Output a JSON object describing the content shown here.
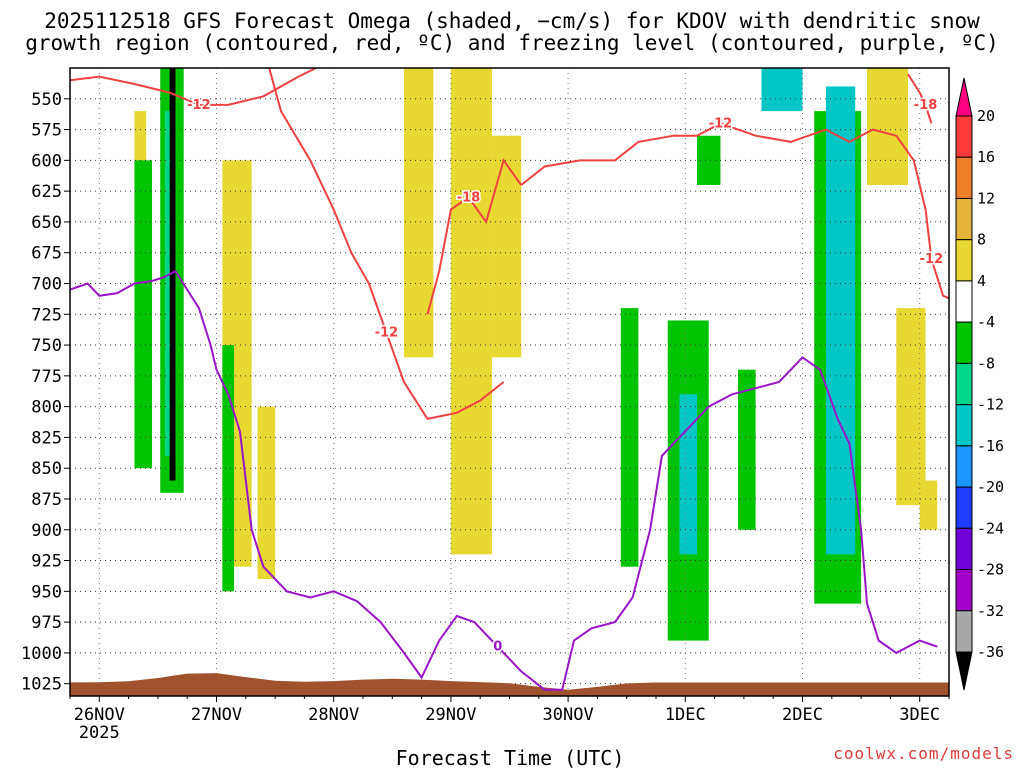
{
  "title_line1": "2025112518 GFS Forecast Omega (shaded, −cm/s) for KDOV with dendritic snow",
  "title_line2": "growth region (contoured, red, ºC) and freezing level (contoured, purple, ºC)",
  "credit": "coolwx.com/models",
  "chart_data": {
    "type": "heatmap",
    "title": "2025112518 GFS Forecast Omega (shaded, −cm/s) for KDOV with dendritic snow growth region (contoured, red, ºC) and freezing level (contoured, purple, ºC)",
    "xlabel": "Forecast Time (UTC)",
    "ylabel": "",
    "year_label": "2025",
    "x_days": [
      26,
      27,
      28,
      29,
      30,
      31,
      32,
      33
    ],
    "x_ticks": [
      {
        "day": 26,
        "label": "26NOV"
      },
      {
        "day": 27,
        "label": "27NOV"
      },
      {
        "day": 28,
        "label": "28NOV"
      },
      {
        "day": 29,
        "label": "29NOV"
      },
      {
        "day": 30,
        "label": "30NOV"
      },
      {
        "day": 31,
        "label": "1DEC"
      },
      {
        "day": 32,
        "label": "2DEC"
      },
      {
        "day": 33,
        "label": "3DEC"
      }
    ],
    "xlim": [
      25.75,
      33.25
    ],
    "ylim_hpa": [
      525,
      1035
    ],
    "y_ticks": [
      550,
      575,
      600,
      625,
      650,
      675,
      700,
      725,
      750,
      775,
      800,
      825,
      850,
      875,
      900,
      925,
      950,
      975,
      1000,
      1025
    ],
    "colorbar": {
      "levels": [
        20,
        16,
        12,
        8,
        4,
        -4,
        -8,
        -12,
        -16,
        -20,
        -24,
        -28,
        -32,
        -36
      ],
      "colors": [
        "#ff0080",
        "#ff3a3a",
        "#ee7f2a",
        "#e6b43a",
        "#e8d832",
        "#ffffff",
        "#00c400",
        "#00d68a",
        "#00c6c6",
        "#1e96ff",
        "#1e3cff",
        "#7000d8",
        "#a000c8",
        "#a8a8a8",
        "#000000"
      ]
    },
    "red_contours": [
      {
        "label": "-12",
        "points": [
          [
            25.75,
            535
          ],
          [
            26.0,
            532
          ],
          [
            26.3,
            538
          ],
          [
            26.6,
            545
          ],
          [
            26.85,
            555
          ],
          [
            27.1,
            555
          ],
          [
            27.4,
            548
          ],
          [
            27.7,
            532
          ],
          [
            27.85,
            525
          ]
        ]
      },
      {
        "label": "-12",
        "points": [
          [
            27.45,
            525
          ],
          [
            27.55,
            560
          ],
          [
            27.8,
            600
          ],
          [
            28.0,
            640
          ],
          [
            28.15,
            675
          ],
          [
            28.3,
            700
          ],
          [
            28.45,
            740
          ],
          [
            28.6,
            780
          ],
          [
            28.8,
            810
          ],
          [
            29.05,
            805
          ],
          [
            29.25,
            795
          ],
          [
            29.45,
            780
          ]
        ]
      },
      {
        "label": "-18",
        "points": [
          [
            28.8,
            725
          ],
          [
            28.9,
            690
          ],
          [
            29.0,
            640
          ],
          [
            29.15,
            630
          ],
          [
            29.3,
            650
          ],
          [
            29.45,
            600
          ],
          [
            29.6,
            620
          ]
        ]
      },
      {
        "label": "-12",
        "points": [
          [
            29.6,
            620
          ],
          [
            29.8,
            605
          ],
          [
            30.1,
            600
          ],
          [
            30.4,
            600
          ],
          [
            30.6,
            585
          ],
          [
            30.9,
            580
          ],
          [
            31.1,
            580
          ],
          [
            31.3,
            570
          ],
          [
            31.6,
            580
          ],
          [
            31.9,
            585
          ],
          [
            32.2,
            575
          ],
          [
            32.4,
            585
          ],
          [
            32.6,
            575
          ],
          [
            32.8,
            580
          ]
        ]
      },
      {
        "label": "-12",
        "points": [
          [
            32.8,
            580
          ],
          [
            32.95,
            600
          ],
          [
            33.05,
            640
          ],
          [
            33.1,
            680
          ],
          [
            33.2,
            710
          ],
          [
            33.25,
            712
          ]
        ]
      },
      {
        "label": "-18",
        "points": [
          [
            32.9,
            530
          ],
          [
            33.0,
            545
          ],
          [
            33.05,
            555
          ],
          [
            33.1,
            570
          ]
        ]
      }
    ],
    "purple_contours": [
      {
        "label": "0",
        "points": [
          [
            25.75,
            705
          ],
          [
            25.9,
            700
          ],
          [
            26.0,
            710
          ],
          [
            26.15,
            708
          ],
          [
            26.3,
            700
          ],
          [
            26.45,
            698
          ],
          [
            26.55,
            695
          ],
          [
            26.65,
            690
          ],
          [
            26.75,
            705
          ],
          [
            26.85,
            720
          ],
          [
            26.95,
            750
          ],
          [
            27.0,
            770
          ],
          [
            27.1,
            790
          ],
          [
            27.2,
            820
          ],
          [
            27.25,
            860
          ],
          [
            27.3,
            900
          ],
          [
            27.4,
            930
          ],
          [
            27.6,
            950
          ],
          [
            27.8,
            955
          ],
          [
            28.0,
            950
          ],
          [
            28.2,
            958
          ],
          [
            28.4,
            975
          ],
          [
            28.6,
            1000
          ],
          [
            28.75,
            1020
          ],
          [
            28.9,
            990
          ],
          [
            29.05,
            970
          ],
          [
            29.2,
            975
          ],
          [
            29.4,
            995
          ],
          [
            29.6,
            1015
          ],
          [
            29.8,
            1030
          ],
          [
            29.95,
            1030
          ],
          [
            30.05,
            990
          ],
          [
            30.2,
            980
          ],
          [
            30.4,
            975
          ],
          [
            30.55,
            955
          ],
          [
            30.7,
            900
          ],
          [
            30.8,
            840
          ],
          [
            30.9,
            830
          ],
          [
            31.0,
            820
          ],
          [
            31.2,
            800
          ],
          [
            31.4,
            790
          ],
          [
            31.6,
            785
          ],
          [
            31.8,
            780
          ],
          [
            32.0,
            760
          ],
          [
            32.15,
            770
          ],
          [
            32.3,
            810
          ],
          [
            32.4,
            830
          ],
          [
            32.5,
            900
          ],
          [
            32.55,
            960
          ],
          [
            32.65,
            990
          ],
          [
            32.8,
            1000
          ],
          [
            32.9,
            995
          ],
          [
            33.0,
            990
          ],
          [
            33.15,
            995
          ]
        ]
      }
    ],
    "omega_regions": [
      {
        "value": 6,
        "day_from": 26.3,
        "day_to": 26.4,
        "p_from": 560,
        "p_to": 700
      },
      {
        "value": -6,
        "day_from": 26.3,
        "day_to": 26.45,
        "p_from": 600,
        "p_to": 850
      },
      {
        "value": -6,
        "day_from": 26.52,
        "day_to": 26.72,
        "p_from": 525,
        "p_to": 870
      },
      {
        "value": -40,
        "day_from": 26.6,
        "day_to": 26.65,
        "p_from": 525,
        "p_to": 860
      },
      {
        "value": -10,
        "day_from": 26.56,
        "day_to": 26.6,
        "p_from": 560,
        "p_to": 840
      },
      {
        "value": 6,
        "day_from": 27.05,
        "day_to": 27.3,
        "p_from": 600,
        "p_to": 930
      },
      {
        "value": -6,
        "day_from": 27.05,
        "day_to": 27.15,
        "p_from": 750,
        "p_to": 950
      },
      {
        "value": 6,
        "day_from": 27.35,
        "day_to": 27.5,
        "p_from": 800,
        "p_to": 940
      },
      {
        "value": 6,
        "day_from": 28.6,
        "day_to": 28.85,
        "p_from": 525,
        "p_to": 760
      },
      {
        "value": 6,
        "day_from": 29.0,
        "day_to": 29.35,
        "p_from": 525,
        "p_to": 920
      },
      {
        "value": 6,
        "day_from": 29.35,
        "day_to": 29.6,
        "p_from": 580,
        "p_to": 760
      },
      {
        "value": -6,
        "day_from": 30.45,
        "day_to": 30.6,
        "p_from": 720,
        "p_to": 930
      },
      {
        "value": -6,
        "day_from": 30.85,
        "day_to": 31.2,
        "p_from": 730,
        "p_to": 990
      },
      {
        "value": -12,
        "day_from": 30.95,
        "day_to": 31.1,
        "p_from": 790,
        "p_to": 920
      },
      {
        "value": -6,
        "day_from": 31.1,
        "day_to": 31.3,
        "p_from": 580,
        "p_to": 620
      },
      {
        "value": -6,
        "day_from": 31.45,
        "day_to": 31.6,
        "p_from": 770,
        "p_to": 900
      },
      {
        "value": -6,
        "day_from": 32.1,
        "day_to": 32.5,
        "p_from": 560,
        "p_to": 960
      },
      {
        "value": -12,
        "day_from": 32.2,
        "day_to": 32.45,
        "p_from": 540,
        "p_to": 920
      },
      {
        "value": -12,
        "day_from": 31.65,
        "day_to": 32.0,
        "p_from": 525,
        "p_to": 560
      },
      {
        "value": 6,
        "day_from": 32.55,
        "day_to": 32.9,
        "p_from": 525,
        "p_to": 620
      },
      {
        "value": 6,
        "day_from": 32.8,
        "day_to": 33.05,
        "p_from": 720,
        "p_to": 880
      },
      {
        "value": 6,
        "day_from": 33.0,
        "day_to": 33.15,
        "p_from": 860,
        "p_to": 900
      }
    ]
  }
}
